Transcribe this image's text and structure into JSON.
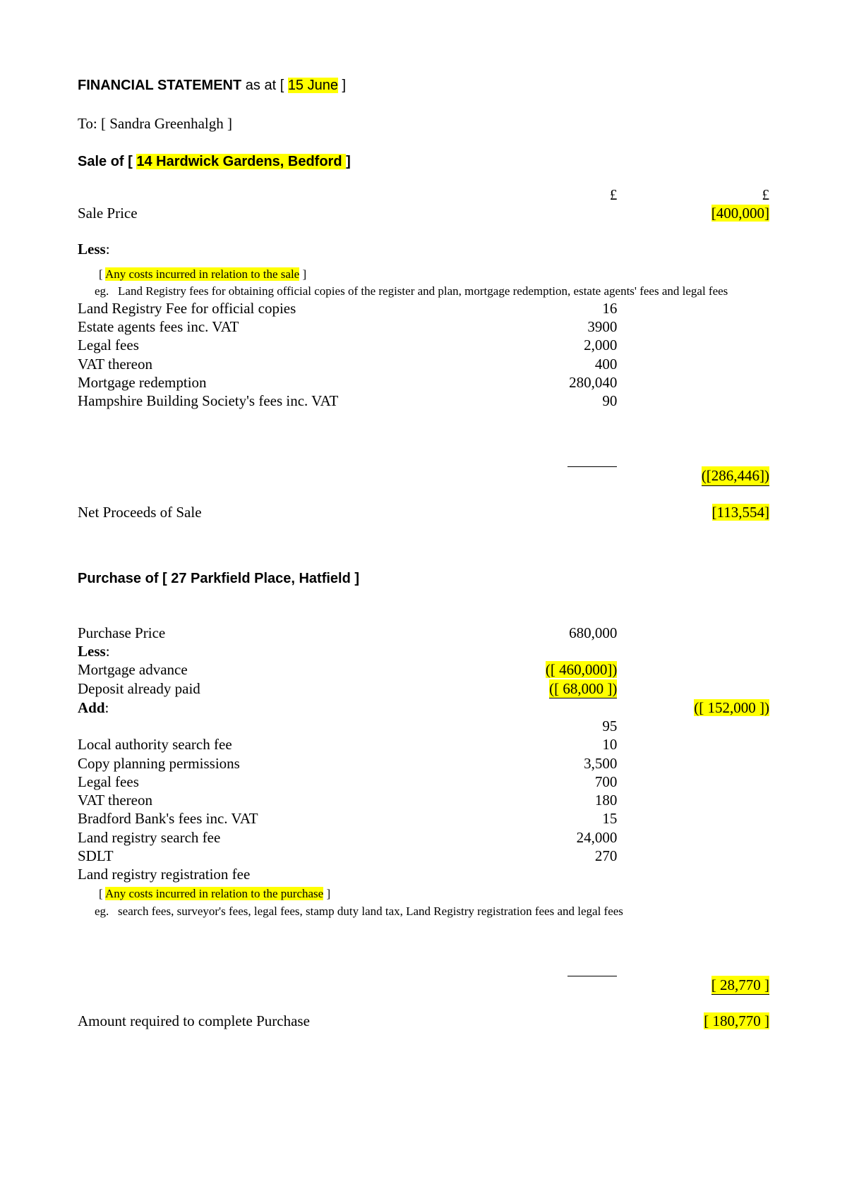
{
  "highlight_color": "#ffff00",
  "header": {
    "title_prefix": "FINANCIAL STATEMENT",
    "title_mid": " as at [ ",
    "date": "15 June",
    "title_suffix": " ]",
    "to_label": "To: [ ",
    "to_name": "Sandra Greenhalgh",
    "to_suffix": " ]"
  },
  "currency_symbol": "£",
  "sale": {
    "heading_prefix": "Sale of [ ",
    "heading_property": "14 Hardwick Gardens, Bedford ",
    "heading_suffix": " ]",
    "sale_price_label": "Sale Price",
    "sale_price_value": "[400,000]",
    "less_label": "Less",
    "less_colon": ":",
    "note_main": "Any costs incurred in relation to the sale",
    "note_eg_label": "eg.",
    "note_eg_text": "Land Registry fees for obtaining official copies of the register and plan, mortgage redemption, estate agents' fees and legal fees",
    "items": [
      {
        "label": "Land Registry Fee for official copies",
        "value": "16"
      },
      {
        "label": "Estate agents fees inc. VAT",
        "value": "3900"
      },
      {
        "label": "Legal fees",
        "value": "2,000"
      },
      {
        "label": "VAT thereon",
        "value": "400"
      },
      {
        "label": "Mortgage redemption",
        "value": "280,040"
      },
      {
        "label": "Hampshire Building Society's fees inc. VAT",
        "value": "90"
      }
    ],
    "subtotal_value": "([286,446])",
    "net_label": "Net Proceeds of Sale",
    "net_value": "[113,554]"
  },
  "purchase": {
    "heading": "Purchase of [ 27 Parkfield Place, Hatfield ]",
    "price_label": "Purchase Price",
    "price_value": "680,000",
    "less_label": "Less",
    "less_colon": ":",
    "mortgage_label": "Mortgage advance",
    "mortgage_value": "([ 460,000])",
    "deposit_label": "Deposit already paid",
    "deposit_value": "([ 68,000 ])",
    "less_subtotal": "([ 152,000 ])",
    "add_label": "Add",
    "add_colon": ":",
    "first_misc_value": "95",
    "items": [
      {
        "label": "Local authority search fee",
        "value": "10"
      },
      {
        "label": "Copy planning permissions",
        "value": "3,500"
      },
      {
        "label": "Legal fees",
        "value": "700"
      },
      {
        "label": "VAT thereon",
        "value": "180"
      },
      {
        "label": "Bradford Bank's fees inc. VAT",
        "value": "15"
      },
      {
        "label": "Land registry search fee",
        "value": "24,000"
      },
      {
        "label": "SDLT",
        "value": "270"
      }
    ],
    "trailing_label": "Land registry registration fee",
    "note_main": "Any costs incurred in relation to the purchase",
    "note_eg_label": "eg.",
    "note_eg_text": "search fees, surveyor's fees, legal fees, stamp duty land tax, Land Registry registration fees and legal fees",
    "add_subtotal": "[ 28,770 ]",
    "amount_label": "Amount required to complete Purchase",
    "amount_value": "[ 180,770 ]"
  }
}
